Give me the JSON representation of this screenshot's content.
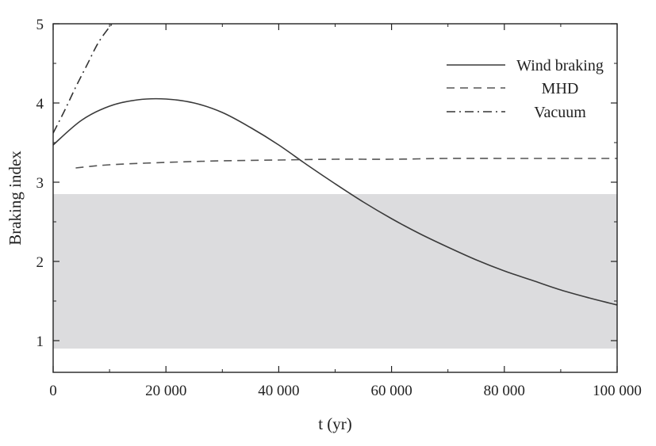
{
  "chart_data": {
    "type": "line",
    "title": "",
    "xlabel": "t (yr)",
    "ylabel": "Braking index",
    "xlim": [
      0,
      100000
    ],
    "ylim": [
      0.6,
      5
    ],
    "x_ticks": [
      0,
      20000,
      40000,
      60000,
      80000,
      100000
    ],
    "x_tick_labels": [
      "0",
      "20 000",
      "40 000",
      "60 000",
      "80 000",
      "100 000"
    ],
    "y_ticks": [
      1,
      2,
      3,
      4,
      5
    ],
    "y_tick_labels": [
      "1",
      "2",
      "3",
      "4",
      "5"
    ],
    "grid": false,
    "legend_position": "top-right",
    "shaded_band": {
      "y_range": [
        0.9,
        2.85
      ],
      "color": "#dcdcde"
    },
    "series": [
      {
        "name": "Wind braking",
        "style": "solid",
        "color": "#3a3a3a",
        "x": [
          0,
          5000,
          10000,
          15000,
          20000,
          25000,
          30000,
          35000,
          40000,
          45000,
          50000,
          55000,
          60000,
          65000,
          70000,
          75000,
          80000,
          85000,
          90000,
          95000,
          100000
        ],
        "y": [
          3.47,
          3.78,
          3.96,
          4.04,
          4.05,
          4.0,
          3.88,
          3.69,
          3.47,
          3.22,
          2.98,
          2.75,
          2.54,
          2.35,
          2.18,
          2.02,
          1.88,
          1.76,
          1.64,
          1.54,
          1.45
        ]
      },
      {
        "name": "MHD",
        "style": "dashed",
        "color": "#555555",
        "x": [
          4000,
          10000,
          20000,
          30000,
          40000,
          50000,
          60000,
          70000,
          80000,
          90000,
          100000
        ],
        "y": [
          3.18,
          3.22,
          3.25,
          3.27,
          3.28,
          3.29,
          3.29,
          3.3,
          3.3,
          3.3,
          3.3
        ]
      },
      {
        "name": "Vacuum",
        "style": "dashdot",
        "color": "#333333",
        "x": [
          0,
          2000,
          4000,
          6000,
          8000,
          10000,
          10600
        ],
        "y": [
          3.62,
          3.9,
          4.2,
          4.48,
          4.76,
          4.96,
          5.0
        ]
      }
    ]
  }
}
